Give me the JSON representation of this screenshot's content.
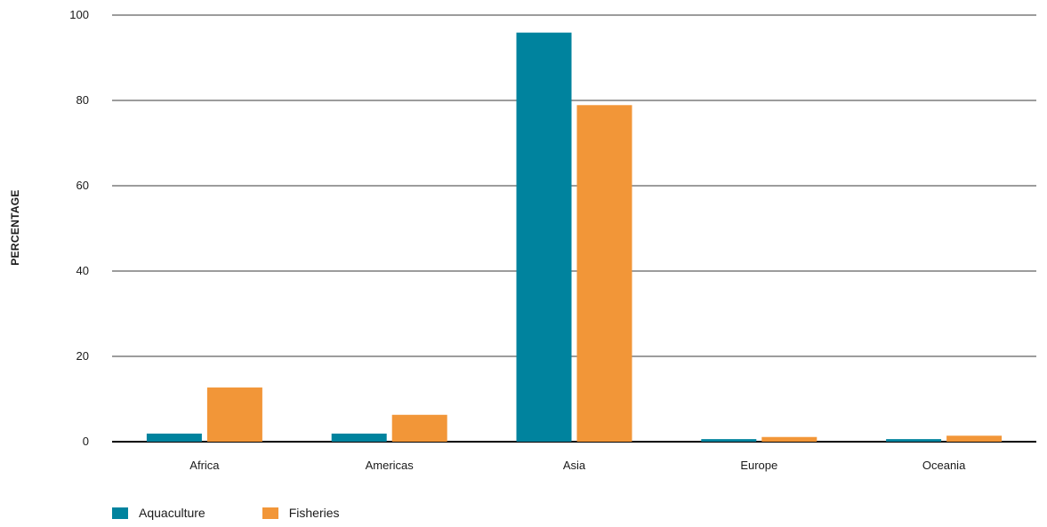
{
  "chart_data": {
    "type": "bar",
    "title": "",
    "xlabel": "",
    "ylabel": "PERCENTAGE",
    "ylim": [
      0,
      100
    ],
    "yticks": [
      "0",
      "20",
      "40",
      "60",
      "80",
      "100"
    ],
    "grid": true,
    "legend_position": "bottom-left",
    "categories": [
      "Africa",
      "Americas",
      "Asia",
      "Europe",
      "Oceania"
    ],
    "series": [
      {
        "name": "Aquaculture",
        "color": "#00839e",
        "values": [
          1.9,
          1.9,
          95.9,
          0.6,
          0.6
        ]
      },
      {
        "name": "Fisheries",
        "color": "#f29638",
        "values": [
          12.7,
          6.3,
          78.9,
          1.1,
          1.4
        ]
      }
    ]
  }
}
